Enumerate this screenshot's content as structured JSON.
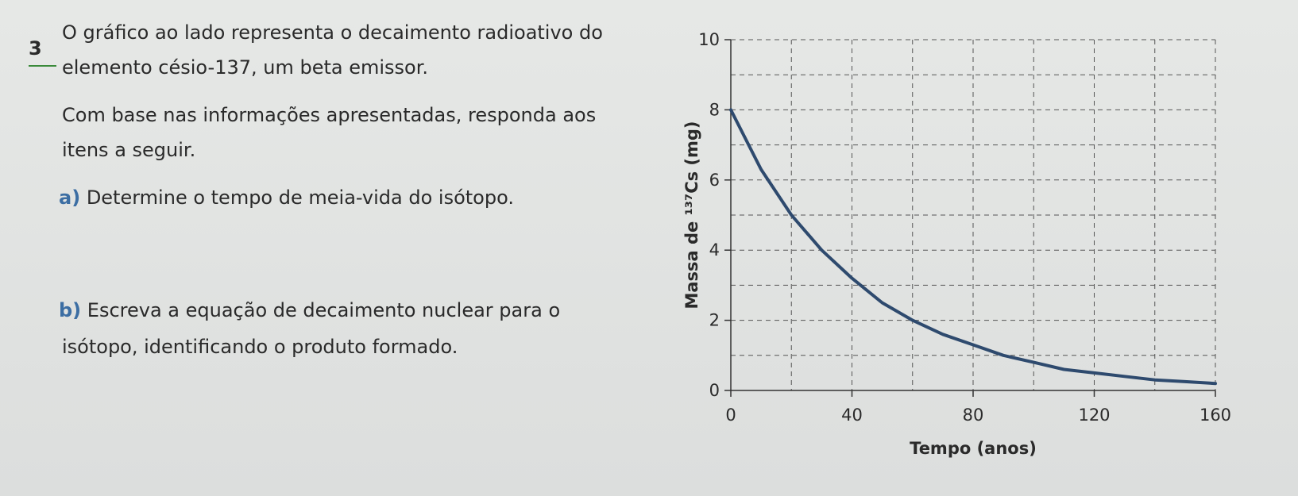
{
  "question": {
    "number": "3",
    "line1": "O gráfico ao lado representa o decaimento radioativo do",
    "line2": "elemento césio-137, um beta emissor.",
    "line3": "Com base nas informações apresentadas, responda aos",
    "line4": "itens a seguir.",
    "item_a_letter": "a)",
    "item_a_text": "Determine o tempo de meia-vida do isótopo.",
    "item_b_letter": "b)",
    "item_b_line1": "Escreva a equação de decaimento nuclear para o",
    "item_b_line2": "isótopo, identificando o produto formado."
  },
  "chart_data": {
    "type": "line",
    "xlabel": "Tempo (anos)",
    "ylabel": "Massa de ¹³⁷Cs (mg)",
    "xlim": [
      0,
      160
    ],
    "ylim": [
      0,
      10
    ],
    "x_ticks": [
      "0",
      "40",
      "80",
      "120",
      "160"
    ],
    "y_ticks": [
      "0",
      "2",
      "4",
      "6",
      "8",
      "10"
    ],
    "grid": true,
    "line_color": "#2e4a6e",
    "series": [
      {
        "x": [
          0,
          10,
          20,
          30,
          40,
          50,
          60,
          70,
          80,
          90,
          100,
          110,
          120,
          130,
          140,
          150,
          160
        ],
        "values": [
          8.0,
          6.3,
          5.0,
          4.0,
          3.2,
          2.5,
          2.0,
          1.6,
          1.3,
          1.0,
          0.8,
          0.6,
          0.5,
          0.4,
          0.3,
          0.25,
          0.2
        ]
      }
    ]
  }
}
